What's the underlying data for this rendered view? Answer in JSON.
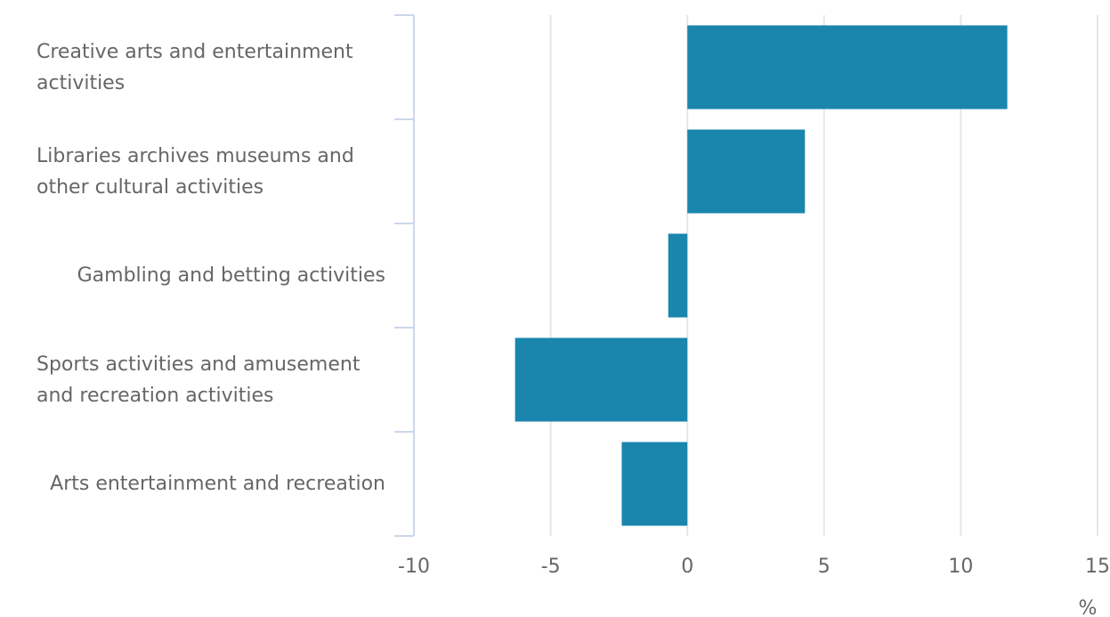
{
  "chart_data": {
    "type": "hbar",
    "categories": [
      "Creative arts and entertainment activities",
      "Libraries archives museums and other cultural activities",
      "Gambling and betting activities",
      "Sports activities and amusement and recreation activities",
      "Arts entertainment and recreation"
    ],
    "values": [
      11.7,
      4.3,
      -0.7,
      -6.3,
      -2.4
    ],
    "color": "#1a86ad",
    "xlim": [
      -10,
      15
    ],
    "xticks": [
      -10,
      -5,
      0,
      5,
      10,
      15
    ],
    "x_label": "%",
    "grid": true
  }
}
